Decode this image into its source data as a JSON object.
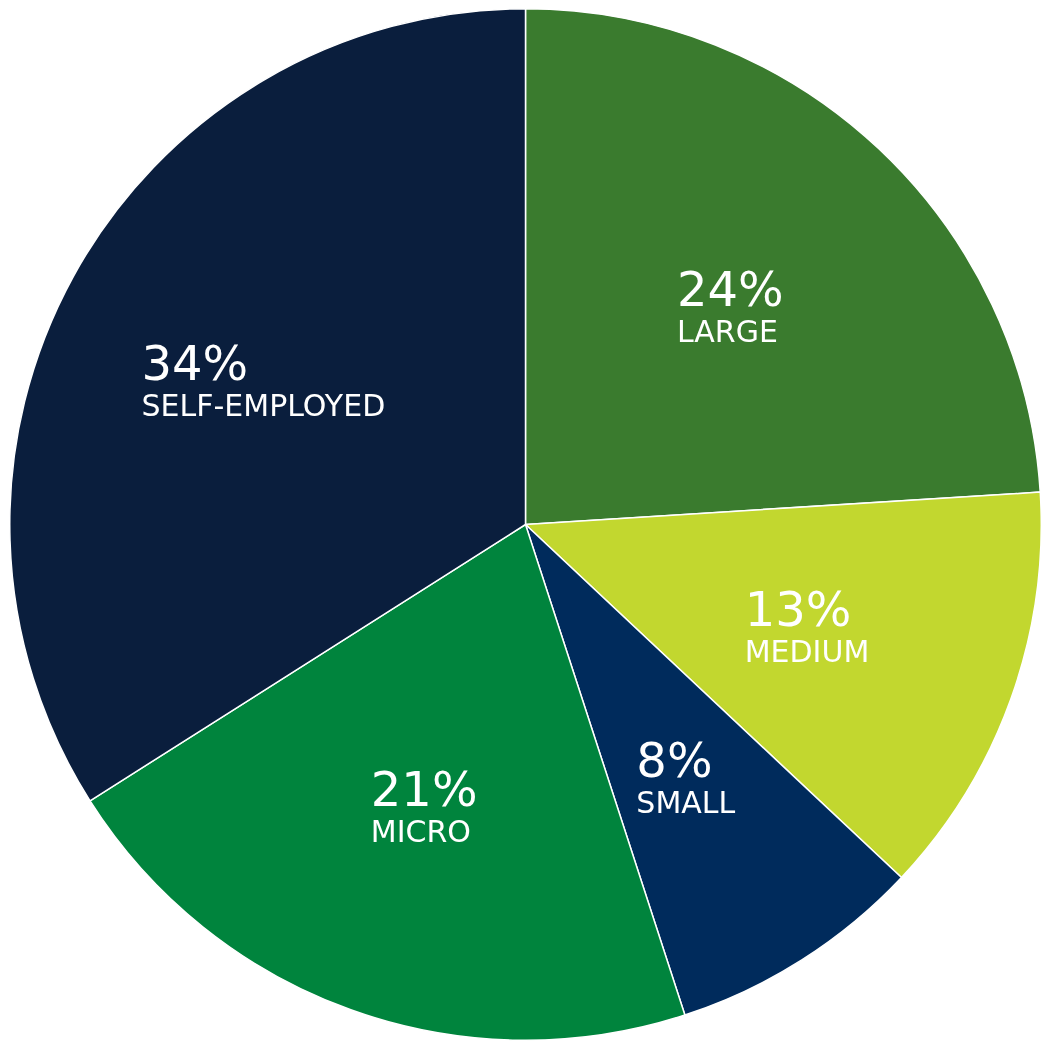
{
  "chart_data": {
    "type": "pie",
    "categories": [
      "LARGE",
      "MEDIUM",
      "SMALL",
      "MICRO",
      "SELF-EMPLOYED"
    ],
    "values": [
      24,
      13,
      8,
      21,
      34
    ],
    "value_labels": [
      "24%",
      "13%",
      "8%",
      "21%",
      "34%"
    ],
    "colors": [
      "#3a7b2e",
      "#c2d72f",
      "#002b5c",
      "#00843d",
      "#0a1e3d"
    ],
    "legend": false
  }
}
